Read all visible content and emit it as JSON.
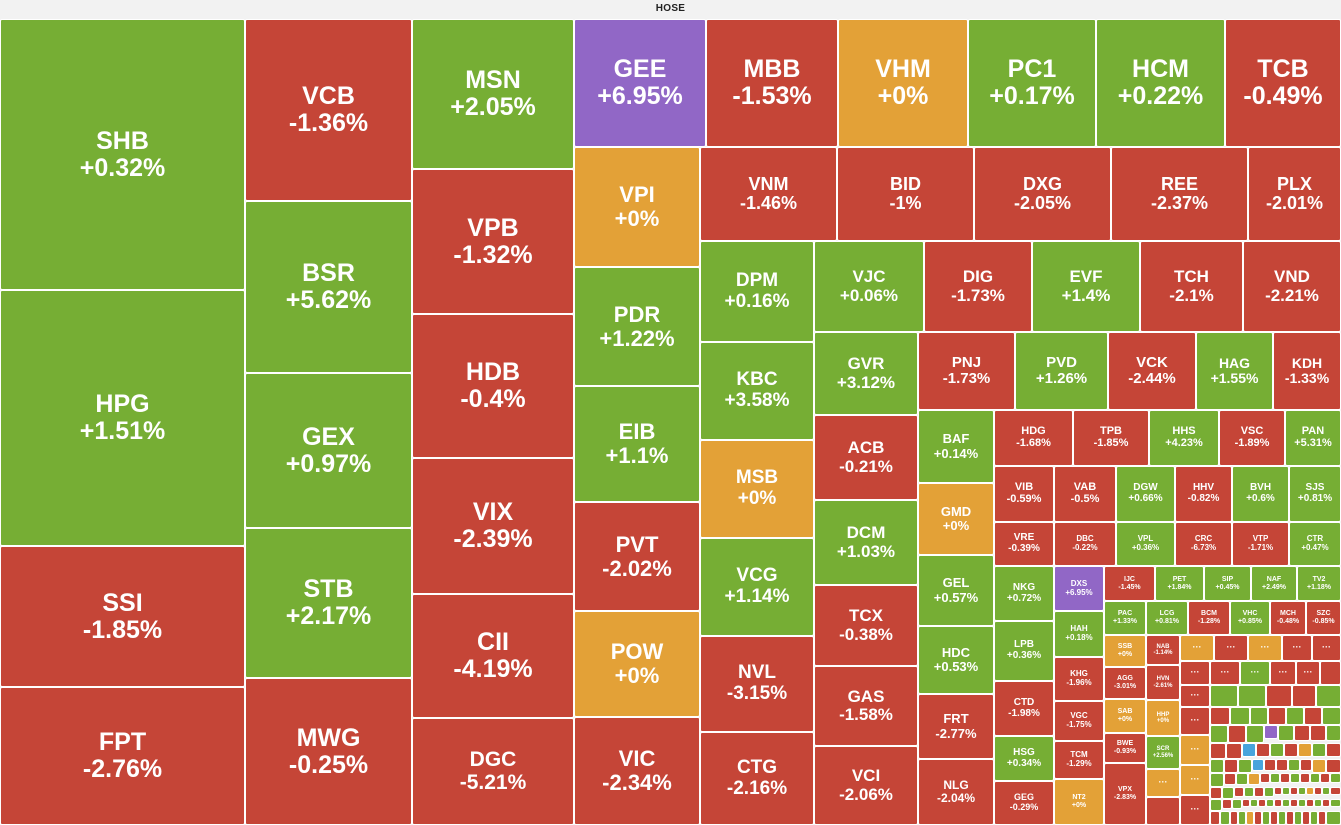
{
  "chart_data": {
    "type": "treemap",
    "title": "HOSE",
    "colors": {
      "up": "#76ae34",
      "down": "#c54537",
      "ceiling": "#9167c6",
      "ref": "#e3a137",
      "floor": "#47a4dc"
    },
    "tiles": [
      {
        "name": "SHB",
        "change": "+0.32%",
        "status": "up"
      },
      {
        "name": "HPG",
        "change": "+1.51%",
        "status": "up"
      },
      {
        "name": "SSI",
        "change": "-1.85%",
        "status": "down"
      },
      {
        "name": "FPT",
        "change": "-2.76%",
        "status": "down"
      },
      {
        "name": "VCB",
        "change": "-1.36%",
        "status": "down"
      },
      {
        "name": "BSR",
        "change": "+5.62%",
        "status": "up"
      },
      {
        "name": "GEX",
        "change": "+0.97%",
        "status": "up"
      },
      {
        "name": "STB",
        "change": "+2.17%",
        "status": "up"
      },
      {
        "name": "MWG",
        "change": "-0.25%",
        "status": "down"
      },
      {
        "name": "MSN",
        "change": "+2.05%",
        "status": "up"
      },
      {
        "name": "VPB",
        "change": "-1.32%",
        "status": "down"
      },
      {
        "name": "HDB",
        "change": "-0.4%",
        "status": "down"
      },
      {
        "name": "VIX",
        "change": "-2.39%",
        "status": "down"
      },
      {
        "name": "CII",
        "change": "-4.19%",
        "status": "down"
      },
      {
        "name": "DGC",
        "change": "-5.21%",
        "status": "down"
      },
      {
        "name": "GEE",
        "change": "+6.95%",
        "status": "ceiling"
      },
      {
        "name": "VPI",
        "change": "+0%",
        "status": "ref"
      },
      {
        "name": "PDR",
        "change": "+1.22%",
        "status": "up"
      },
      {
        "name": "EIB",
        "change": "+1.1%",
        "status": "up"
      },
      {
        "name": "PVT",
        "change": "-2.02%",
        "status": "down"
      },
      {
        "name": "POW",
        "change": "+0%",
        "status": "ref"
      },
      {
        "name": "VIC",
        "change": "-2.34%",
        "status": "down"
      },
      {
        "name": "MBB",
        "change": "-1.53%",
        "status": "down"
      },
      {
        "name": "VHM",
        "change": "+0%",
        "status": "ref"
      },
      {
        "name": "PC1",
        "change": "+0.17%",
        "status": "up"
      },
      {
        "name": "HCM",
        "change": "+0.22%",
        "status": "up"
      },
      {
        "name": "TCB",
        "change": "-0.49%",
        "status": "down"
      },
      {
        "name": "VNM",
        "change": "-1.46%",
        "status": "down"
      },
      {
        "name": "BID",
        "change": "-1%",
        "status": "down"
      },
      {
        "name": "DXG",
        "change": "-2.05%",
        "status": "down"
      },
      {
        "name": "REE",
        "change": "-2.37%",
        "status": "down"
      },
      {
        "name": "PLX",
        "change": "-2.01%",
        "status": "down"
      },
      {
        "name": "DPM",
        "change": "+0.16%",
        "status": "up"
      },
      {
        "name": "KBC",
        "change": "+3.58%",
        "status": "up"
      },
      {
        "name": "MSB",
        "change": "+0%",
        "status": "ref"
      },
      {
        "name": "VCG",
        "change": "+1.14%",
        "status": "up"
      },
      {
        "name": "NVL",
        "change": "-3.15%",
        "status": "down"
      },
      {
        "name": "CTG",
        "change": "-2.16%",
        "status": "down"
      },
      {
        "name": "VJC",
        "change": "+0.06%",
        "status": "up"
      },
      {
        "name": "GVR",
        "change": "+3.12%",
        "status": "up"
      },
      {
        "name": "ACB",
        "change": "-0.21%",
        "status": "down"
      },
      {
        "name": "DCM",
        "change": "+1.03%",
        "status": "up"
      },
      {
        "name": "TCX",
        "change": "-0.38%",
        "status": "down"
      },
      {
        "name": "GAS",
        "change": "-1.58%",
        "status": "down"
      },
      {
        "name": "VCI",
        "change": "-2.06%",
        "status": "down"
      },
      {
        "name": "DIG",
        "change": "-1.73%",
        "status": "down"
      },
      {
        "name": "EVF",
        "change": "+1.4%",
        "status": "up"
      },
      {
        "name": "TCH",
        "change": "-2.1%",
        "status": "down"
      },
      {
        "name": "VND",
        "change": "-2.21%",
        "status": "down"
      },
      {
        "name": "PNJ",
        "change": "-1.73%",
        "status": "down"
      },
      {
        "name": "PVD",
        "change": "+1.26%",
        "status": "up"
      },
      {
        "name": "VCK",
        "change": "-2.44%",
        "status": "down"
      },
      {
        "name": "HAG",
        "change": "+1.55%",
        "status": "up"
      },
      {
        "name": "KDH",
        "change": "-1.33%",
        "status": "down"
      },
      {
        "name": "BAF",
        "change": "+0.14%",
        "status": "up"
      },
      {
        "name": "GMD",
        "change": "+0%",
        "status": "ref"
      },
      {
        "name": "GEL",
        "change": "+0.57%",
        "status": "up"
      },
      {
        "name": "HDC",
        "change": "+0.53%",
        "status": "up"
      },
      {
        "name": "FRT",
        "change": "-2.77%",
        "status": "down"
      },
      {
        "name": "NLG",
        "change": "-2.04%",
        "status": "down"
      },
      {
        "name": "HDG",
        "change": "-1.68%",
        "status": "down"
      },
      {
        "name": "TPB",
        "change": "-1.85%",
        "status": "down"
      },
      {
        "name": "HHS",
        "change": "+4.23%",
        "status": "up"
      },
      {
        "name": "VSC",
        "change": "-1.89%",
        "status": "down"
      },
      {
        "name": "PAN",
        "change": "+5.31%",
        "status": "up"
      },
      {
        "name": "VIB",
        "change": "-0.59%",
        "status": "down"
      },
      {
        "name": "VAB",
        "change": "-0.5%",
        "status": "down"
      },
      {
        "name": "DGW",
        "change": "+0.66%",
        "status": "up"
      },
      {
        "name": "HHV",
        "change": "-0.82%",
        "status": "down"
      },
      {
        "name": "BVH",
        "change": "+0.6%",
        "status": "up"
      },
      {
        "name": "SJS",
        "change": "+0.81%",
        "status": "up"
      },
      {
        "name": "VRE",
        "change": "-0.39%",
        "status": "down"
      },
      {
        "name": "DBC",
        "change": "-0.22%",
        "status": "down"
      },
      {
        "name": "VPL",
        "change": "+0.36%",
        "status": "up"
      },
      {
        "name": "CRC",
        "change": "-6.73%",
        "status": "down"
      },
      {
        "name": "VTP",
        "change": "-1.71%",
        "status": "down"
      },
      {
        "name": "CTR",
        "change": "+0.47%",
        "status": "up"
      },
      {
        "name": "NKG",
        "change": "+0.72%",
        "status": "up"
      },
      {
        "name": "DXS",
        "change": "+6.95%",
        "status": "ceiling"
      },
      {
        "name": "IJC",
        "change": "-1.45%",
        "status": "down"
      },
      {
        "name": "PET",
        "change": "+1.84%",
        "status": "up"
      },
      {
        "name": "SIP",
        "change": "+0.45%",
        "status": "up"
      },
      {
        "name": "NAF",
        "change": "+2.49%",
        "status": "up"
      },
      {
        "name": "TV2",
        "change": "+1.18%",
        "status": "up"
      },
      {
        "name": "LPB",
        "change": "+0.36%",
        "status": "up"
      },
      {
        "name": "HAH",
        "change": "+0.18%",
        "status": "up"
      },
      {
        "name": "PAC",
        "change": "+1.33%",
        "status": "up"
      },
      {
        "name": "LCG",
        "change": "+0.81%",
        "status": "up"
      },
      {
        "name": "BCM",
        "change": "-1.28%",
        "status": "down"
      },
      {
        "name": "VHC",
        "change": "+0.85%",
        "status": "up"
      },
      {
        "name": "MCH",
        "change": "-0.48%",
        "status": "down"
      },
      {
        "name": "SZC",
        "change": "-0.85%",
        "status": "down"
      },
      {
        "name": "CTD",
        "change": "-1.98%",
        "status": "down"
      },
      {
        "name": "KHG",
        "change": "-1.96%",
        "status": "down"
      },
      {
        "name": "SSB",
        "change": "+0%",
        "status": "ref"
      },
      {
        "name": "NAB",
        "change": "-1.14%",
        "status": "down"
      },
      {
        "name": "HVN",
        "change": "-2.61%",
        "status": "down"
      },
      {
        "name": "AGG",
        "change": "-3.01%",
        "status": "down"
      },
      {
        "name": "HSG",
        "change": "+0.34%",
        "status": "up"
      },
      {
        "name": "VGC",
        "change": "-1.75%",
        "status": "down"
      },
      {
        "name": "SAB",
        "change": "+0%",
        "status": "ref"
      },
      {
        "name": "HHP",
        "change": "+0%",
        "status": "ref"
      },
      {
        "name": "TCM",
        "change": "-1.29%",
        "status": "down"
      },
      {
        "name": "SCR",
        "change": "+2.56%",
        "status": "up"
      },
      {
        "name": "BWE",
        "change": "-0.93%",
        "status": "down"
      },
      {
        "name": "GEG",
        "change": "-0.29%",
        "status": "down"
      },
      {
        "name": "NT2",
        "change": "+0%",
        "status": "ref"
      },
      {
        "name": "VPX",
        "change": "-2.83%",
        "status": "down"
      }
    ],
    "more_label": "···"
  }
}
